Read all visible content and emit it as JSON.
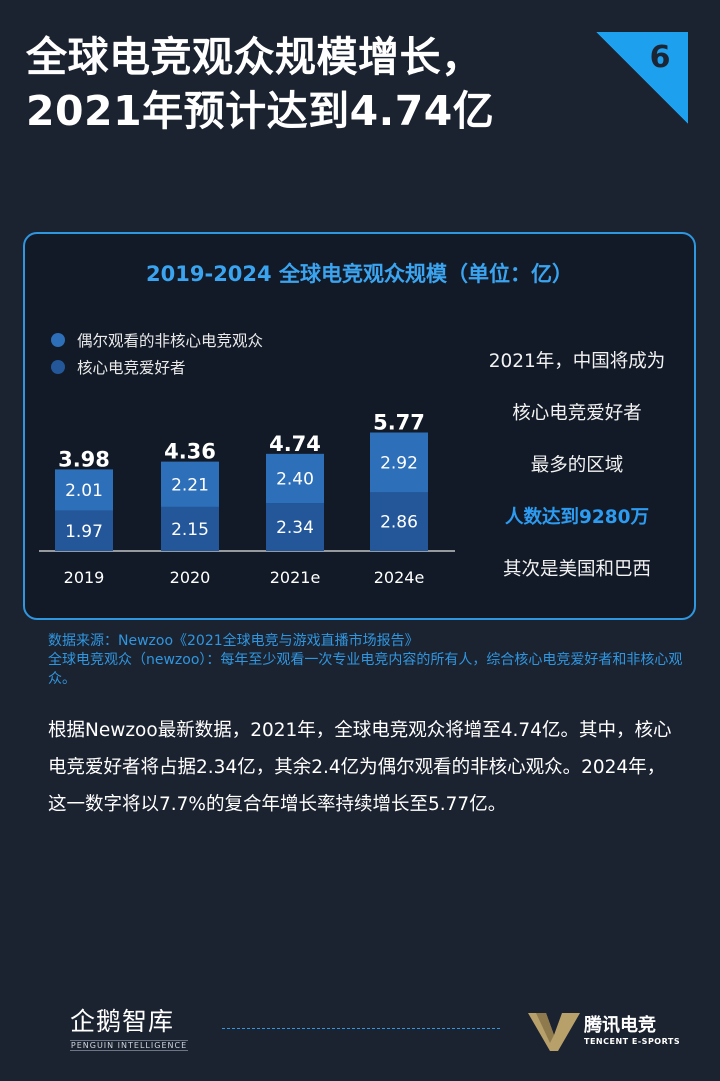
{
  "page": {
    "title_line1": "全球电竞观众规模增长，",
    "title_line2": "2021年预计达到4.74亿",
    "page_number": "6"
  },
  "chart_data": {
    "type": "bar",
    "stacked": true,
    "title": "2019-2024 全球电竞观众规模（单位：亿）",
    "categories": [
      "2019",
      "2020",
      "2021e",
      "2024e"
    ],
    "totals": [
      "3.98",
      "4.36",
      "4.74",
      "5.77"
    ],
    "series": [
      {
        "name": "偶尔观看的非核心电竞观众",
        "values": [
          2.01,
          2.21,
          2.4,
          2.92
        ],
        "labels": [
          "2.01",
          "2.21",
          "2.40",
          "2.92"
        ],
        "color": "#2d6fb8"
      },
      {
        "name": "核心电竞爱好者",
        "values": [
          1.97,
          2.15,
          2.34,
          2.86
        ],
        "labels": [
          "1.97",
          "2.15",
          "2.34",
          "2.86"
        ],
        "color": "#23579a"
      }
    ],
    "ylim": [
      0,
      6
    ],
    "legend_position": "top-left",
    "grid": false
  },
  "side_note": {
    "line1": "2021年，中国将成为",
    "line2": "核心电竞爱好者",
    "line3": "最多的区域",
    "highlight": "人数达到9280万",
    "line5": "其次是美国和巴西"
  },
  "source": {
    "line1": "数据来源：Newzoo《2021全球电竞与游戏直播市场报告》",
    "line2": "全球电竞观众（newzoo）：每年至少观看一次专业电竞内容的所有人，综合核心电竞爱好者和非核心观众。"
  },
  "body_text": "根据Newzoo最新数据，2021年，全球电竞观众将增至4.74亿。其中，核心电竞爱好者将占据2.34亿，其余2.4亿为偶尔观看的非核心观众。2024年，这一数字将以7.7%的复合年增长率持续增长至5.77亿。",
  "footer": {
    "left_logo_cn": "企鹅智库",
    "left_logo_en": "PENGUIN INTELLIGENCE",
    "right_logo_cn": "腾讯电竞",
    "right_logo_en": "TENCENT E-SPORTS"
  },
  "colors": {
    "background": "#1c2330",
    "accent": "#2f96e0",
    "panel": "#121a27"
  }
}
